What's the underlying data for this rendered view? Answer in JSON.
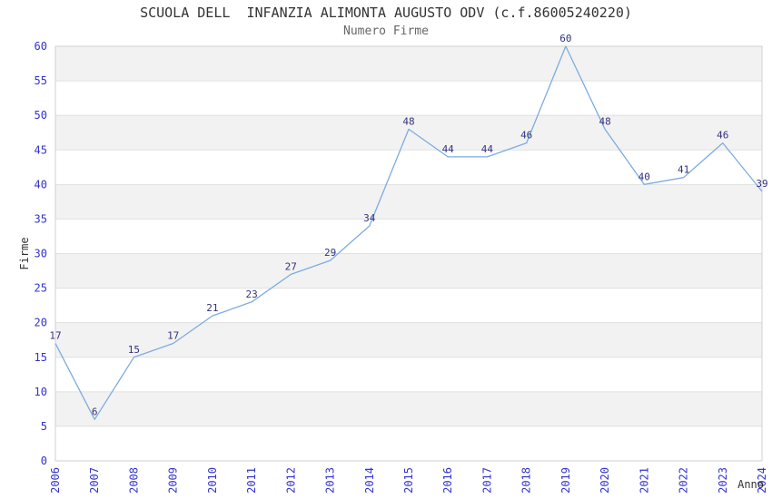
{
  "header": {
    "title": "SCUOLA DELL  INFANZIA ALIMONTA AUGUSTO ODV (c.f.86005240220)",
    "subtitle": "Numero Firme"
  },
  "chart_data": {
    "type": "line",
    "title": "SCUOLA DELL  INFANZIA ALIMONTA AUGUSTO ODV (c.f.86005240220)",
    "subtitle": "Numero Firme",
    "xlabel": "Anno",
    "ylabel": "Firme",
    "categories": [
      "2006",
      "2007",
      "2008",
      "2009",
      "2010",
      "2011",
      "2012",
      "2013",
      "2014",
      "2015",
      "2016",
      "2017",
      "2018",
      "2019",
      "2020",
      "2021",
      "2022",
      "2023",
      "2024"
    ],
    "values": [
      17,
      6,
      15,
      17,
      21,
      23,
      27,
      29,
      34,
      48,
      44,
      44,
      46,
      60,
      48,
      40,
      41,
      46,
      39
    ],
    "ylim": [
      0,
      60
    ],
    "ytick_step": 5,
    "yticks": [
      0,
      5,
      10,
      15,
      20,
      25,
      30,
      35,
      40,
      45,
      50,
      55,
      60
    ],
    "grid": "horizontal gridlines with alternating shaded bands",
    "legend_position": "none",
    "data_labels_shown": true,
    "colors": {
      "line": "#7cacdf",
      "tick_label": "#3333cc",
      "data_label": "#32327d",
      "band_shaded": "#f2f2f2",
      "band_plain": "#ffffff",
      "gridline": "#e0e0e0",
      "plot_border": "#d0d0d0",
      "title": "#333333",
      "subtitle": "#666666",
      "axis_label": "#333333"
    }
  }
}
